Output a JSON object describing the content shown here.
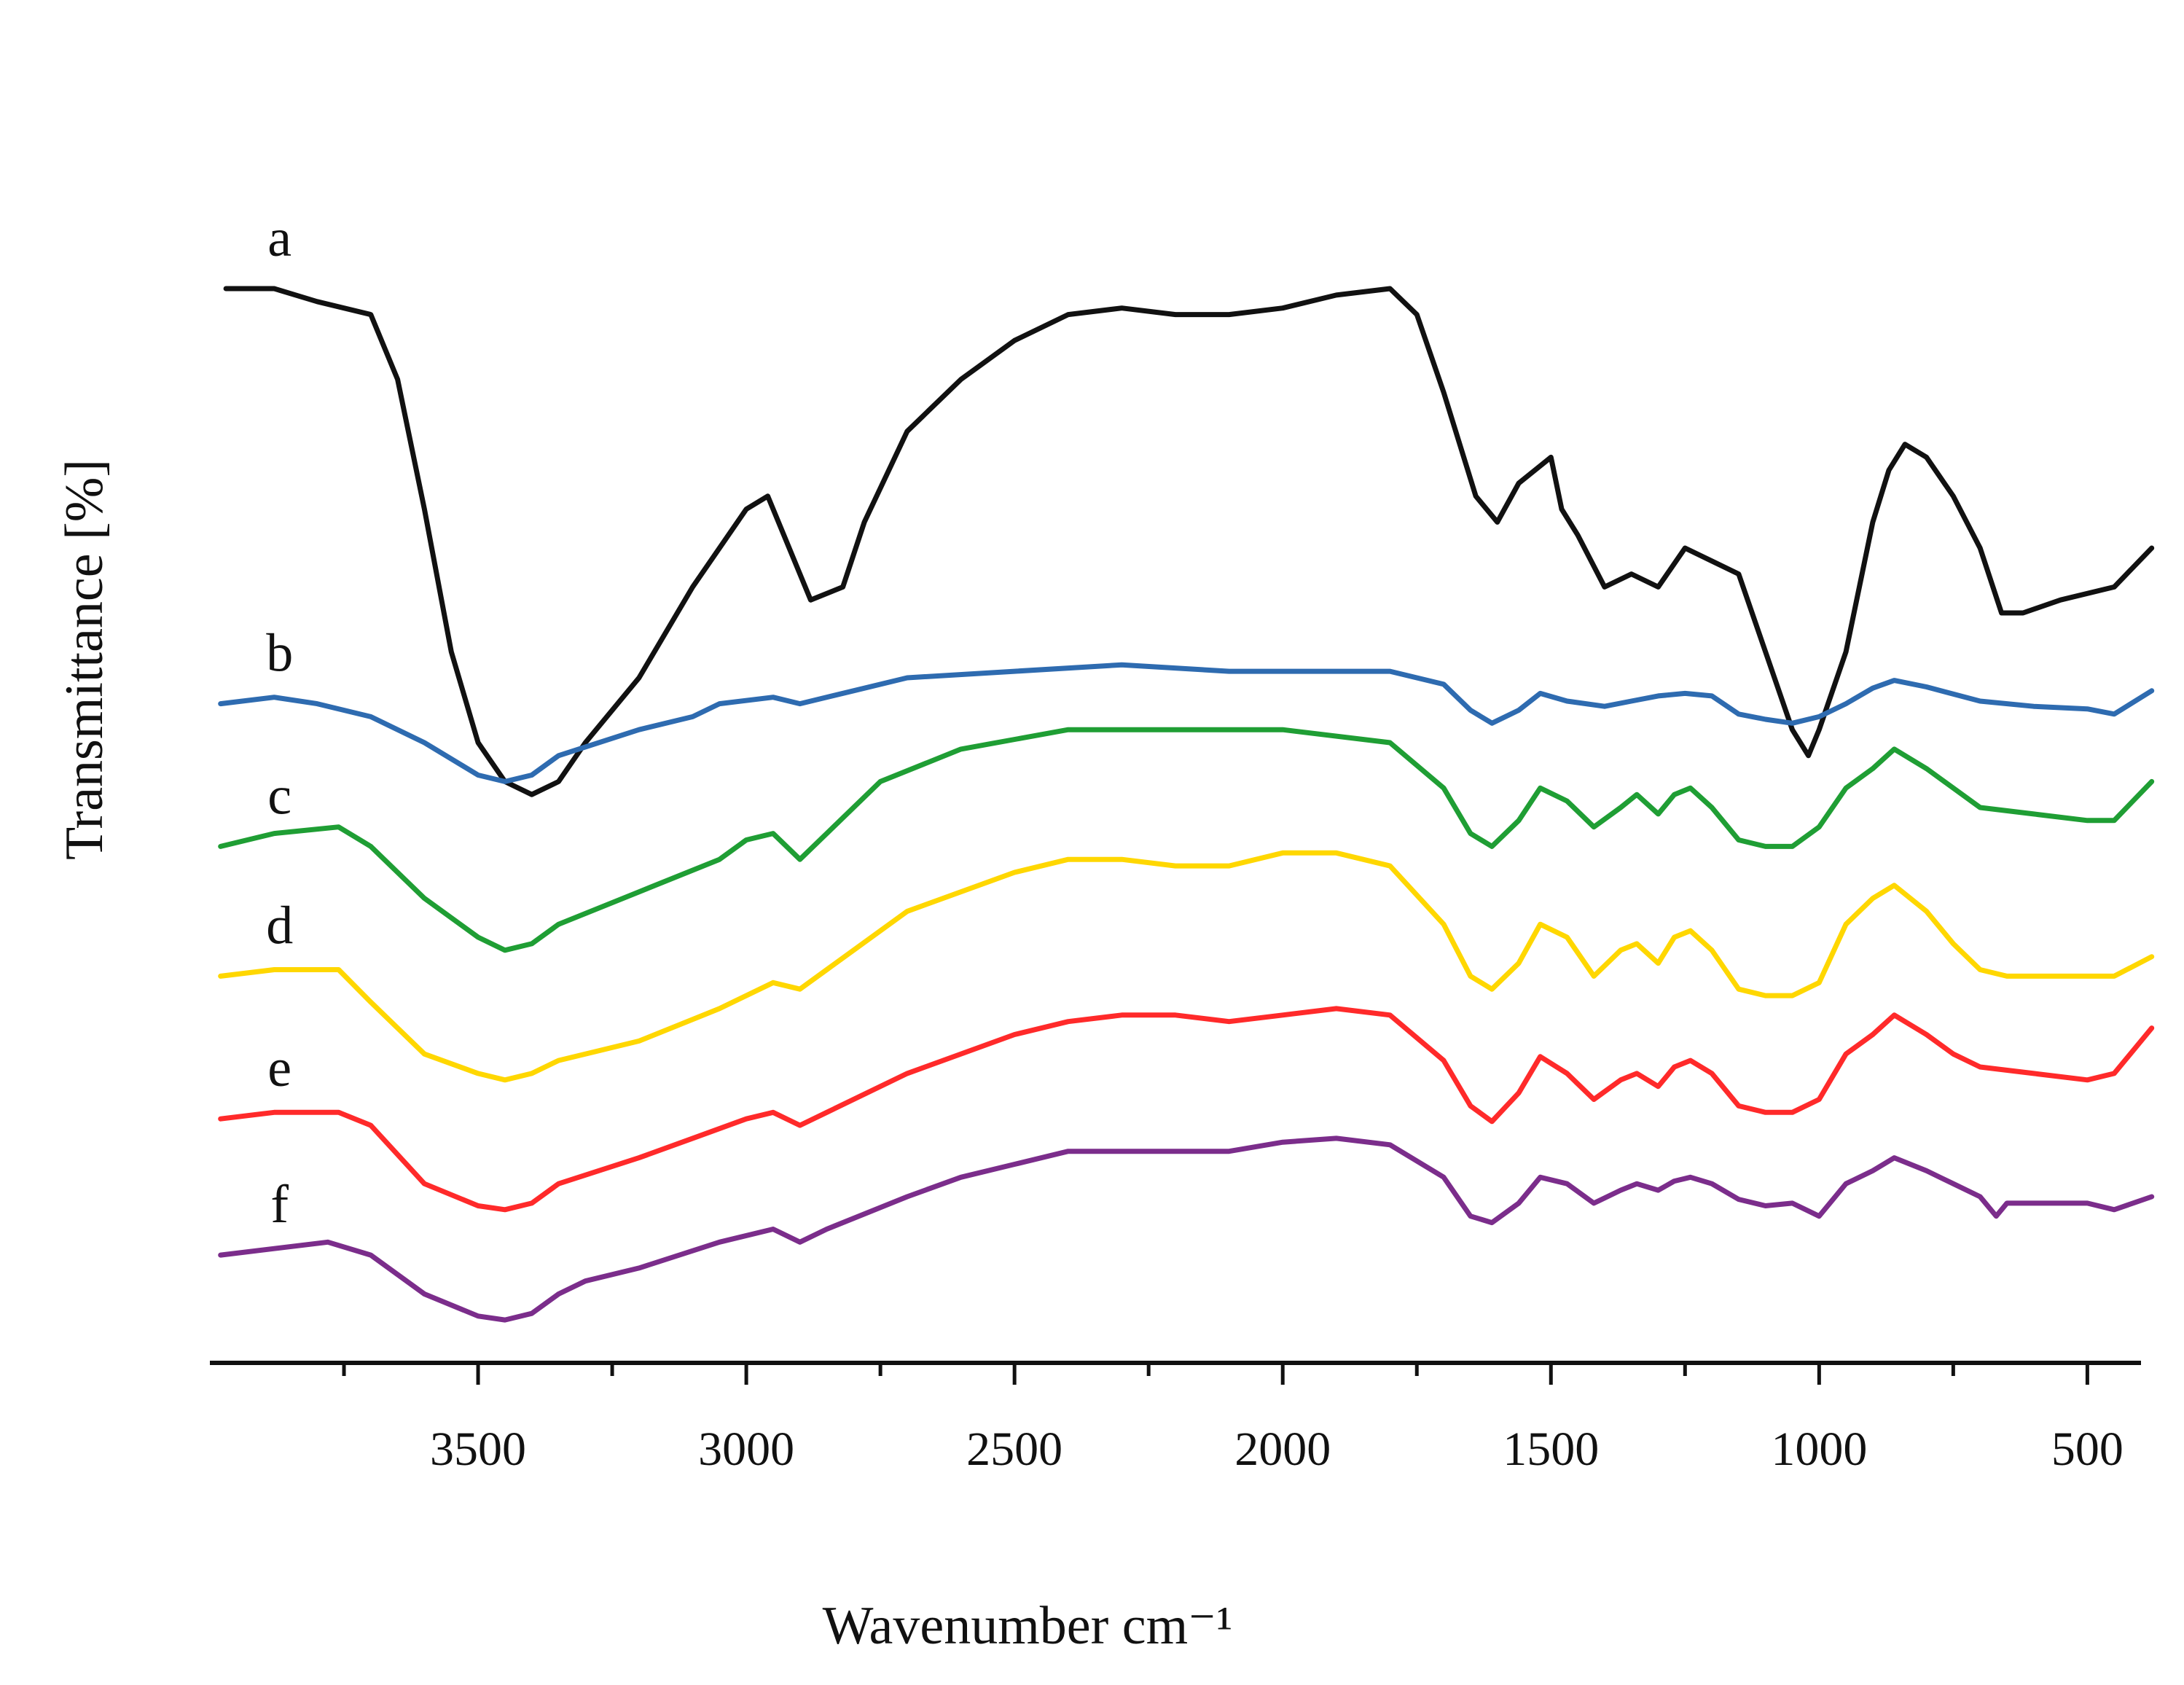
{
  "chart_data": {
    "type": "line",
    "title": "",
    "xlabel": "Wavenumber cm⁻¹",
    "ylabel": "Transmittance [%]",
    "xlim": [
      4000,
      400
    ],
    "x_reversed": true,
    "xticks": [
      3500,
      3000,
      2500,
      2000,
      1500,
      1000,
      500
    ],
    "xtick_labels": [
      "3500",
      "3000",
      "2500",
      "2000",
      "1500",
      "1000",
      "500"
    ],
    "y_units": "relative transmittance, stacked (offset) traces",
    "ylim": [
      0,
      100
    ],
    "grid": false,
    "series": [
      {
        "name": "a",
        "color": "#111111",
        "points": [
          [
            3970,
            80
          ],
          [
            3880,
            80
          ],
          [
            3800,
            79
          ],
          [
            3700,
            78
          ],
          [
            3650,
            73
          ],
          [
            3600,
            63
          ],
          [
            3550,
            52
          ],
          [
            3500,
            45
          ],
          [
            3450,
            42
          ],
          [
            3400,
            41
          ],
          [
            3350,
            42
          ],
          [
            3300,
            45
          ],
          [
            3200,
            50
          ],
          [
            3100,
            57
          ],
          [
            3000,
            63
          ],
          [
            2960,
            64
          ],
          [
            2920,
            60
          ],
          [
            2880,
            56
          ],
          [
            2820,
            57
          ],
          [
            2780,
            62
          ],
          [
            2700,
            69
          ],
          [
            2600,
            73
          ],
          [
            2500,
            76
          ],
          [
            2400,
            78
          ],
          [
            2300,
            78.5
          ],
          [
            2200,
            78
          ],
          [
            2100,
            78
          ],
          [
            2000,
            78.5
          ],
          [
            1900,
            79.5
          ],
          [
            1800,
            80
          ],
          [
            1750,
            78
          ],
          [
            1700,
            72
          ],
          [
            1640,
            64
          ],
          [
            1600,
            62
          ],
          [
            1560,
            65
          ],
          [
            1500,
            67
          ],
          [
            1480,
            63
          ],
          [
            1450,
            61
          ],
          [
            1400,
            57
          ],
          [
            1350,
            58
          ],
          [
            1300,
            57
          ],
          [
            1250,
            60
          ],
          [
            1200,
            59
          ],
          [
            1150,
            58
          ],
          [
            1100,
            52
          ],
          [
            1050,
            46
          ],
          [
            1020,
            44
          ],
          [
            1000,
            46
          ],
          [
            950,
            52
          ],
          [
            900,
            62
          ],
          [
            870,
            66
          ],
          [
            840,
            68
          ],
          [
            800,
            67
          ],
          [
            750,
            64
          ],
          [
            700,
            60
          ],
          [
            660,
            55
          ],
          [
            620,
            55
          ],
          [
            550,
            56
          ],
          [
            450,
            57
          ],
          [
            380,
            60
          ]
        ]
      },
      {
        "name": "b",
        "color": "#2e6bb0",
        "points": [
          [
            3980,
            48
          ],
          [
            3880,
            48.5
          ],
          [
            3800,
            48
          ],
          [
            3700,
            47
          ],
          [
            3600,
            45
          ],
          [
            3500,
            42.5
          ],
          [
            3450,
            42
          ],
          [
            3400,
            42.5
          ],
          [
            3350,
            44
          ],
          [
            3200,
            46
          ],
          [
            3100,
            47
          ],
          [
            3050,
            48
          ],
          [
            2950,
            48.5
          ],
          [
            2900,
            48
          ],
          [
            2800,
            49
          ],
          [
            2700,
            50
          ],
          [
            2500,
            50.5
          ],
          [
            2300,
            51
          ],
          [
            2100,
            50.5
          ],
          [
            2000,
            50.5
          ],
          [
            1900,
            50.5
          ],
          [
            1800,
            50.5
          ],
          [
            1700,
            49.5
          ],
          [
            1650,
            47.5
          ],
          [
            1610,
            46.5
          ],
          [
            1560,
            47.5
          ],
          [
            1520,
            48.8
          ],
          [
            1470,
            48.2
          ],
          [
            1400,
            47.8
          ],
          [
            1350,
            48.2
          ],
          [
            1300,
            48.6
          ],
          [
            1250,
            48.8
          ],
          [
            1200,
            48.6
          ],
          [
            1150,
            47.2
          ],
          [
            1100,
            46.8
          ],
          [
            1050,
            46.5
          ],
          [
            1000,
            47
          ],
          [
            950,
            48
          ],
          [
            900,
            49.2
          ],
          [
            860,
            49.8
          ],
          [
            800,
            49.3
          ],
          [
            700,
            48.2
          ],
          [
            600,
            47.8
          ],
          [
            500,
            47.6
          ],
          [
            450,
            47.2
          ],
          [
            380,
            49
          ]
        ]
      },
      {
        "name": "c",
        "color": "#1f9e34",
        "points": [
          [
            3980,
            37
          ],
          [
            3880,
            38
          ],
          [
            3760,
            38.5
          ],
          [
            3700,
            37
          ],
          [
            3600,
            33
          ],
          [
            3500,
            30
          ],
          [
            3450,
            29
          ],
          [
            3400,
            29.5
          ],
          [
            3350,
            31
          ],
          [
            3200,
            33.5
          ],
          [
            3050,
            36
          ],
          [
            3000,
            37.5
          ],
          [
            2950,
            38
          ],
          [
            2900,
            36
          ],
          [
            2850,
            38
          ],
          [
            2750,
            42
          ],
          [
            2600,
            44.5
          ],
          [
            2400,
            46
          ],
          [
            2200,
            46
          ],
          [
            2000,
            46
          ],
          [
            1800,
            45
          ],
          [
            1700,
            41.5
          ],
          [
            1650,
            38
          ],
          [
            1610,
            37
          ],
          [
            1560,
            39
          ],
          [
            1520,
            41.5
          ],
          [
            1470,
            40.5
          ],
          [
            1420,
            38.5
          ],
          [
            1370,
            40
          ],
          [
            1340,
            41
          ],
          [
            1300,
            39.5
          ],
          [
            1270,
            41
          ],
          [
            1240,
            41.5
          ],
          [
            1200,
            40
          ],
          [
            1150,
            37.5
          ],
          [
            1100,
            37
          ],
          [
            1050,
            37
          ],
          [
            1000,
            38.5
          ],
          [
            950,
            41.5
          ],
          [
            900,
            43
          ],
          [
            860,
            44.5
          ],
          [
            800,
            43
          ],
          [
            700,
            40
          ],
          [
            600,
            39.5
          ],
          [
            500,
            39
          ],
          [
            450,
            39
          ],
          [
            380,
            42
          ]
        ]
      },
      {
        "name": "d",
        "color": "#ffd700",
        "points": [
          [
            3980,
            27
          ],
          [
            3880,
            27.5
          ],
          [
            3760,
            27.5
          ],
          [
            3700,
            25
          ],
          [
            3600,
            21
          ],
          [
            3500,
            19.5
          ],
          [
            3450,
            19
          ],
          [
            3400,
            19.5
          ],
          [
            3350,
            20.5
          ],
          [
            3200,
            22
          ],
          [
            3050,
            24.5
          ],
          [
            2950,
            26.5
          ],
          [
            2900,
            26
          ],
          [
            2850,
            27.5
          ],
          [
            2700,
            32
          ],
          [
            2500,
            35
          ],
          [
            2400,
            36
          ],
          [
            2300,
            36
          ],
          [
            2200,
            35.5
          ],
          [
            2100,
            35.5
          ],
          [
            2000,
            36.5
          ],
          [
            1900,
            36.5
          ],
          [
            1800,
            35.5
          ],
          [
            1700,
            31
          ],
          [
            1650,
            27
          ],
          [
            1610,
            26
          ],
          [
            1560,
            28
          ],
          [
            1520,
            31
          ],
          [
            1470,
            30
          ],
          [
            1420,
            27
          ],
          [
            1370,
            29
          ],
          [
            1340,
            29.5
          ],
          [
            1300,
            28
          ],
          [
            1270,
            30
          ],
          [
            1240,
            30.5
          ],
          [
            1200,
            29
          ],
          [
            1150,
            26
          ],
          [
            1100,
            25.5
          ],
          [
            1050,
            25.5
          ],
          [
            1000,
            26.5
          ],
          [
            950,
            31
          ],
          [
            900,
            33
          ],
          [
            860,
            34
          ],
          [
            800,
            32
          ],
          [
            750,
            29.5
          ],
          [
            700,
            27.5
          ],
          [
            650,
            27
          ],
          [
            600,
            27
          ],
          [
            500,
            27
          ],
          [
            450,
            27
          ],
          [
            380,
            28.5
          ]
        ]
      },
      {
        "name": "e",
        "color": "#ff2a2a",
        "points": [
          [
            3980,
            16
          ],
          [
            3880,
            16.5
          ],
          [
            3760,
            16.5
          ],
          [
            3700,
            15.5
          ],
          [
            3600,
            11
          ],
          [
            3500,
            9.3
          ],
          [
            3450,
            9
          ],
          [
            3400,
            9.5
          ],
          [
            3350,
            11
          ],
          [
            3200,
            13
          ],
          [
            3100,
            14.5
          ],
          [
            3000,
            16
          ],
          [
            2950,
            16.5
          ],
          [
            2900,
            15.5
          ],
          [
            2850,
            16.5
          ],
          [
            2700,
            19.5
          ],
          [
            2500,
            22.5
          ],
          [
            2400,
            23.5
          ],
          [
            2300,
            24
          ],
          [
            2200,
            24
          ],
          [
            2100,
            23.5
          ],
          [
            2000,
            24
          ],
          [
            1900,
            24.5
          ],
          [
            1800,
            24
          ],
          [
            1700,
            20.5
          ],
          [
            1650,
            17
          ],
          [
            1610,
            15.8
          ],
          [
            1560,
            18
          ],
          [
            1520,
            20.8
          ],
          [
            1470,
            19.5
          ],
          [
            1420,
            17.5
          ],
          [
            1370,
            19
          ],
          [
            1340,
            19.5
          ],
          [
            1300,
            18.5
          ],
          [
            1270,
            20
          ],
          [
            1240,
            20.5
          ],
          [
            1200,
            19.5
          ],
          [
            1150,
            17
          ],
          [
            1100,
            16.5
          ],
          [
            1050,
            16.5
          ],
          [
            1000,
            17.5
          ],
          [
            950,
            21
          ],
          [
            900,
            22.5
          ],
          [
            860,
            24
          ],
          [
            800,
            22.5
          ],
          [
            750,
            21
          ],
          [
            700,
            20
          ],
          [
            600,
            19.5
          ],
          [
            500,
            19
          ],
          [
            450,
            19.5
          ],
          [
            380,
            23
          ]
        ]
      },
      {
        "name": "f",
        "color": "#7b2d8b",
        "points": [
          [
            3980,
            5.5
          ],
          [
            3880,
            6
          ],
          [
            3780,
            6.5
          ],
          [
            3700,
            5.5
          ],
          [
            3600,
            2.5
          ],
          [
            3500,
            0.8
          ],
          [
            3450,
            0.5
          ],
          [
            3400,
            1
          ],
          [
            3350,
            2.5
          ],
          [
            3300,
            3.5
          ],
          [
            3200,
            4.5
          ],
          [
            3050,
            6.5
          ],
          [
            2950,
            7.5
          ],
          [
            2900,
            6.5
          ],
          [
            2850,
            7.5
          ],
          [
            2700,
            10
          ],
          [
            2600,
            11.5
          ],
          [
            2500,
            12.5
          ],
          [
            2400,
            13.5
          ],
          [
            2300,
            13.5
          ],
          [
            2200,
            13.5
          ],
          [
            2100,
            13.5
          ],
          [
            2000,
            14.2
          ],
          [
            1900,
            14.5
          ],
          [
            1800,
            14
          ],
          [
            1700,
            11.5
          ],
          [
            1650,
            8.5
          ],
          [
            1610,
            8
          ],
          [
            1560,
            9.5
          ],
          [
            1520,
            11.5
          ],
          [
            1470,
            11
          ],
          [
            1420,
            9.5
          ],
          [
            1370,
            10.5
          ],
          [
            1340,
            11
          ],
          [
            1300,
            10.5
          ],
          [
            1270,
            11.2
          ],
          [
            1240,
            11.5
          ],
          [
            1200,
            11
          ],
          [
            1150,
            9.8
          ],
          [
            1100,
            9.3
          ],
          [
            1050,
            9.5
          ],
          [
            1000,
            8.5
          ],
          [
            950,
            11
          ],
          [
            900,
            12
          ],
          [
            860,
            13
          ],
          [
            800,
            12
          ],
          [
            750,
            11
          ],
          [
            700,
            10
          ],
          [
            670,
            8.5
          ],
          [
            650,
            9.5
          ],
          [
            600,
            9.5
          ],
          [
            500,
            9.5
          ],
          [
            450,
            9
          ],
          [
            380,
            10
          ]
        ]
      }
    ]
  }
}
